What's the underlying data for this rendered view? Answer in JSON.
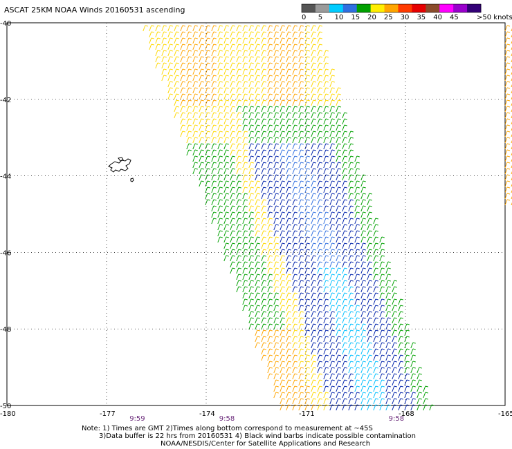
{
  "title": "ASCAT 25KM NOAA Winds 20160531 ascending",
  "legend": {
    "unit_label": ">50 knots",
    "tick_labels": [
      "0",
      "5",
      "10",
      "15",
      "20",
      "25",
      "30",
      "35",
      "40",
      "45"
    ],
    "colors": [
      "#555555",
      "#9a9a9a",
      "#00ccff",
      "#2f6fe0",
      "#00a000",
      "#ffee00",
      "#ffa500",
      "#ff3a00",
      "#e60000",
      "#8a4b2a",
      "#ff00ff",
      "#9900cc",
      "#330077"
    ]
  },
  "axes": {
    "lat_labels": [
      "-40",
      "-42",
      "-44",
      "-46",
      "-48",
      "-50"
    ],
    "lat_values": [
      -40,
      -42,
      -44,
      -46,
      -48,
      -50
    ],
    "lon_labels": [
      "-180",
      "-177",
      "-174",
      "-171",
      "-168",
      "-165"
    ],
    "lon_values": [
      -180,
      -177,
      -174,
      -171,
      -168,
      -165
    ],
    "lat_range": [
      -50,
      -40
    ],
    "lon_range": [
      -180,
      -165
    ]
  },
  "pass_times": [
    "9:59",
    "9:58",
    "9:58"
  ],
  "pass_time_lons": [
    -176.1,
    -173.4,
    -168.3
  ],
  "notes": {
    "line1": "Note: 1) Times are GMT 2)Times along bottom correspond to measurement at ~45S",
    "line2": "3)Data buffer is 22 hrs from 20160531 4) Black wind barbs indicate possible contamination",
    "line3": "NOAA/NESDIS/Center for Satellite Applications and Research"
  },
  "swaths": [
    {
      "polygon_lonlat": [
        [
          -175.9,
          -40
        ],
        [
          -170.6,
          -40
        ],
        [
          -167.2,
          -50
        ],
        [
          -171.8,
          -50
        ]
      ]
    },
    {
      "polygon_lonlat": [
        [
          -165.0,
          -40
        ],
        [
          -164.6,
          -40
        ],
        [
          -164.6,
          -44.7
        ],
        [
          -165.0,
          -44.7
        ]
      ]
    }
  ]
}
